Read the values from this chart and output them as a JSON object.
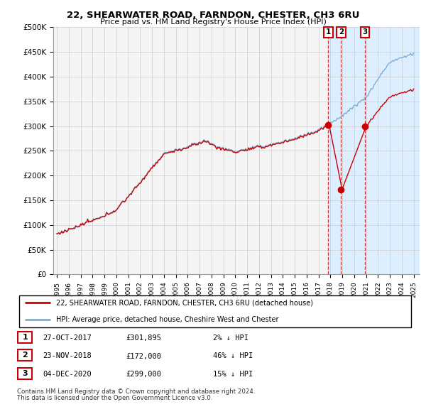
{
  "title": "22, SHEARWATER ROAD, FARNDON, CHESTER, CH3 6RU",
  "subtitle": "Price paid vs. HM Land Registry's House Price Index (HPI)",
  "ylabel_ticks": [
    "£0",
    "£50K",
    "£100K",
    "£150K",
    "£200K",
    "£250K",
    "£300K",
    "£350K",
    "£400K",
    "£450K",
    "£500K"
  ],
  "ytick_vals": [
    0,
    50000,
    100000,
    150000,
    200000,
    250000,
    300000,
    350000,
    400000,
    450000,
    500000
  ],
  "ylim": [
    0,
    500000
  ],
  "xlim_start": 1994.7,
  "xlim_end": 2025.5,
  "xtick_years": [
    1995,
    1996,
    1997,
    1998,
    1999,
    2000,
    2001,
    2002,
    2003,
    2004,
    2005,
    2006,
    2007,
    2008,
    2009,
    2010,
    2011,
    2012,
    2013,
    2014,
    2015,
    2016,
    2017,
    2018,
    2019,
    2020,
    2021,
    2022,
    2023,
    2024,
    2025
  ],
  "sale1_x": 2017.82,
  "sale1_y": 301895,
  "sale2_x": 2018.9,
  "sale2_y": 172000,
  "sale3_x": 2020.92,
  "sale3_y": 299000,
  "legend_label_red": "22, SHEARWATER ROAD, FARNDON, CHESTER, CH3 6RU (detached house)",
  "legend_label_blue": "HPI: Average price, detached house, Cheshire West and Chester",
  "table_rows": [
    {
      "num": "1",
      "date": "27-OCT-2017",
      "price": "£301,895",
      "pct": "2% ↓ HPI"
    },
    {
      "num": "2",
      "date": "23-NOV-2018",
      "price": "£172,000",
      "pct": "46% ↓ HPI"
    },
    {
      "num": "3",
      "date": "04-DEC-2020",
      "price": "£299,000",
      "pct": "15% ↓ HPI"
    }
  ],
  "footnote1": "Contains HM Land Registry data © Crown copyright and database right 2024.",
  "footnote2": "This data is licensed under the Open Government Licence v3.0.",
  "hpi_line_color": "#7ab0d4",
  "price_line_color": "#cc0000",
  "shade_color": "#ddeeff",
  "vline_color": "#cc0000",
  "marker_fill_color": "#cc0000",
  "marker_box_edge_color": "#cc0000",
  "grid_color": "#cccccc",
  "bg_color": "#f5f5f5"
}
